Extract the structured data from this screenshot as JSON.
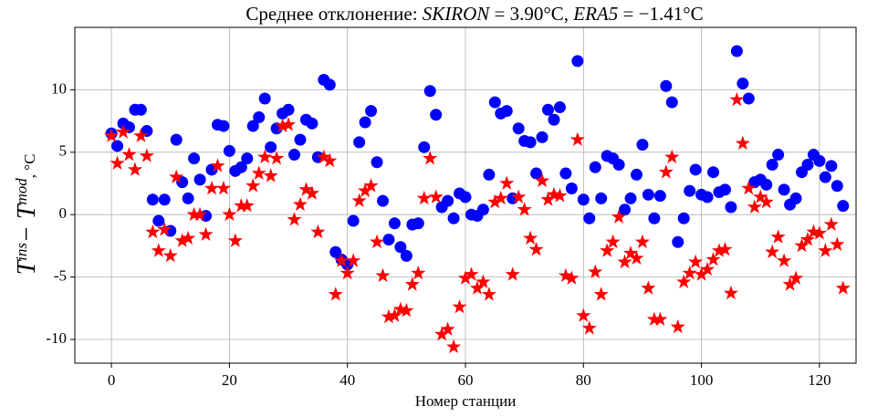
{
  "chart_data": {
    "type": "scatter",
    "title": [
      {
        "text": "Среднее отклонение: ",
        "italic": false
      },
      {
        "text": "SKIRON",
        "italic": true
      },
      {
        "text": " = 3.90°C, ",
        "italic": false
      },
      {
        "text": "ERA5",
        "italic": true
      },
      {
        "text": " = −1.41°C",
        "italic": false
      }
    ],
    "xlabel": "Номер станции",
    "ylabel": [
      {
        "text": "T",
        "sup": false
      },
      {
        "text": "ins",
        "sup": true
      },
      {
        "text": "− ",
        "sup": false
      },
      {
        "text": "T",
        "sup": false
      },
      {
        "text": "mod",
        "sup": true
      },
      {
        "text": ", °C",
        "sup": false
      }
    ],
    "x": [
      0,
      1,
      2,
      3,
      4,
      5,
      6,
      7,
      8,
      9,
      10,
      11,
      12,
      13,
      14,
      15,
      16,
      17,
      18,
      19,
      20,
      21,
      22,
      23,
      24,
      25,
      26,
      27,
      28,
      29,
      30,
      31,
      32,
      33,
      34,
      35,
      36,
      37,
      38,
      39,
      40,
      41,
      42,
      43,
      44,
      45,
      46,
      47,
      48,
      49,
      50,
      51,
      52,
      53,
      54,
      55,
      56,
      57,
      58,
      59,
      60,
      61,
      62,
      63,
      64,
      65,
      66,
      67,
      68,
      69,
      70,
      71,
      72,
      73,
      74,
      75,
      76,
      77,
      78,
      79,
      80,
      81,
      82,
      83,
      84,
      85,
      86,
      87,
      88,
      89,
      90,
      91,
      92,
      93,
      94,
      95,
      96,
      97,
      98,
      99,
      100,
      101,
      102,
      103,
      104,
      105,
      106,
      107,
      108,
      109,
      110,
      111,
      112,
      113,
      114,
      115,
      116,
      117,
      118,
      119,
      120,
      121,
      122,
      123,
      124
    ],
    "series": [
      {
        "color": "#0000ff",
        "marker": "circle",
        "values": [
          6.5,
          5.5,
          7.3,
          7.0,
          8.4,
          8.4,
          6.7,
          1.2,
          -0.5,
          1.2,
          -1.3,
          6.0,
          2.6,
          1.3,
          4.5,
          2.8,
          -0.1,
          3.6,
          7.2,
          7.1,
          5.1,
          3.5,
          3.8,
          4.5,
          7.1,
          7.8,
          9.3,
          5.4,
          6.9,
          8.1,
          8.4,
          4.8,
          6.0,
          7.6,
          7.3,
          4.6,
          10.8,
          10.4,
          -3.0,
          -3.6,
          -4.0,
          -0.5,
          5.8,
          7.4,
          8.3,
          4.2,
          1.1,
          -2.0,
          -0.7,
          -2.6,
          -3.3,
          -0.8,
          -0.7,
          5.4,
          9.9,
          8.0,
          0.6,
          1.1,
          -0.3,
          1.7,
          1.4,
          0.0,
          -0.1,
          0.4,
          3.2,
          9.0,
          8.1,
          8.3,
          1.3,
          6.9,
          5.9,
          5.8,
          3.3,
          6.2,
          8.4,
          7.6,
          8.6,
          3.3,
          2.1,
          12.3,
          1.2,
          -0.3,
          3.8,
          1.3,
          4.7,
          4.5,
          4.0,
          0.4,
          1.3,
          3.2,
          5.6,
          1.6,
          -0.3,
          1.5,
          10.3,
          9.0,
          -2.2,
          -0.3,
          1.9,
          3.6,
          1.6,
          1.4,
          3.4,
          1.8,
          2.0,
          0.6,
          13.1,
          10.5,
          9.3,
          2.6,
          2.8,
          2.4,
          4.0,
          4.8,
          2.0,
          0.8,
          1.3,
          3.4,
          4.0,
          4.8,
          4.3,
          3.0,
          3.9,
          2.3,
          0.7
        ]
      },
      {
        "color": "#ff0000",
        "marker": "star",
        "values": [
          6.3,
          4.1,
          6.6,
          4.8,
          3.6,
          6.3,
          4.7,
          -1.4,
          -2.9,
          -1.2,
          -3.3,
          3.0,
          -2.1,
          -1.9,
          0.0,
          0.0,
          -1.6,
          2.1,
          3.9,
          2.1,
          0.0,
          -2.1,
          0.7,
          0.7,
          2.3,
          3.3,
          4.6,
          3.1,
          4.5,
          7.1,
          7.2,
          -0.4,
          0.8,
          2.0,
          1.7,
          -1.4,
          4.6,
          4.3,
          -6.4,
          -3.7,
          -4.7,
          -3.7,
          1.1,
          1.9,
          2.3,
          -2.2,
          -4.9,
          -8.2,
          -8.1,
          -7.6,
          -7.7,
          -5.6,
          -4.7,
          1.3,
          4.5,
          1.4,
          -9.6,
          -9.2,
          -10.6,
          -7.4,
          -5.1,
          -4.8,
          -5.9,
          -5.4,
          -6.4,
          1.0,
          1.3,
          2.5,
          -4.8,
          1.4,
          0.4,
          -1.9,
          -2.8,
          2.7,
          1.2,
          1.6,
          1.5,
          -4.9,
          -5.1,
          6.0,
          -8.1,
          -9.1,
          -4.6,
          -6.4,
          -2.9,
          -2.2,
          -0.2,
          -3.8,
          -3.1,
          -3.5,
          -2.2,
          -5.9,
          -8.4,
          -8.4,
          3.4,
          4.6,
          -9.0,
          -5.4,
          -4.7,
          -3.8,
          -4.8,
          -4.4,
          -3.6,
          -2.9,
          -2.8,
          -6.3,
          9.2,
          5.7,
          2.1,
          0.6,
          1.4,
          1.0,
          -3.0,
          -1.8,
          -3.7,
          -5.6,
          -5.1,
          -2.5,
          -2.0,
          -1.4,
          -1.5,
          -2.9,
          -0.8,
          -2.4,
          -5.9
        ]
      }
    ],
    "xlim": [
      -6.2,
      126.2
    ],
    "ylim": [
      -11.9,
      15.0
    ],
    "xticks": [
      0,
      20,
      40,
      60,
      80,
      100,
      120
    ],
    "yticks": [
      -10,
      -5,
      0,
      5,
      10
    ],
    "grid": true
  }
}
